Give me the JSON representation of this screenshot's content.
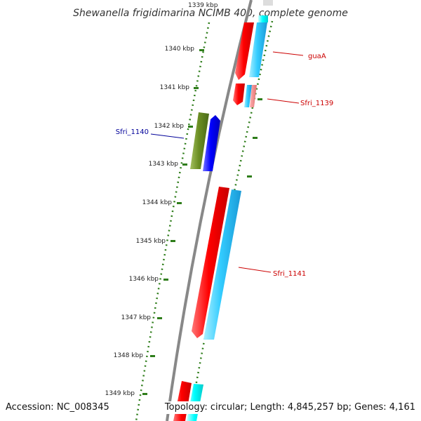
{
  "title": "Shewanella frigidimarina NCIMB 400, complete genome",
  "ruler": {
    "labels": [
      "1340 kbp",
      "1341 kbp",
      "1342 kbp",
      "1343 kbp",
      "1344 kbp",
      "1345 kbp",
      "1346 kbp",
      "1347 kbp",
      "1348 kbp",
      "1349 kbp"
    ]
  },
  "genes": [
    {
      "name": "guaA",
      "color": "#cc0000"
    },
    {
      "name": "Sfri_1139",
      "color": "#cc0000"
    },
    {
      "name": "Sfri_1140",
      "color": "#000099"
    },
    {
      "name": "Sfri_1141",
      "color": "#cc0000"
    }
  ],
  "colors": {
    "backbone": "#888888",
    "tick": "#2e7d1a",
    "cds_forward": "#ff0000",
    "orf_forward": "#33ccff",
    "cds_reverse": "#0000ff",
    "orf_reverse": "#6b8e23",
    "rna_like": "#00ffff"
  },
  "footer": {
    "accession": "Accession: NC_008345",
    "topology": "Topology: circular; Length: 4,845,257 bp; Genes: 4,161"
  }
}
